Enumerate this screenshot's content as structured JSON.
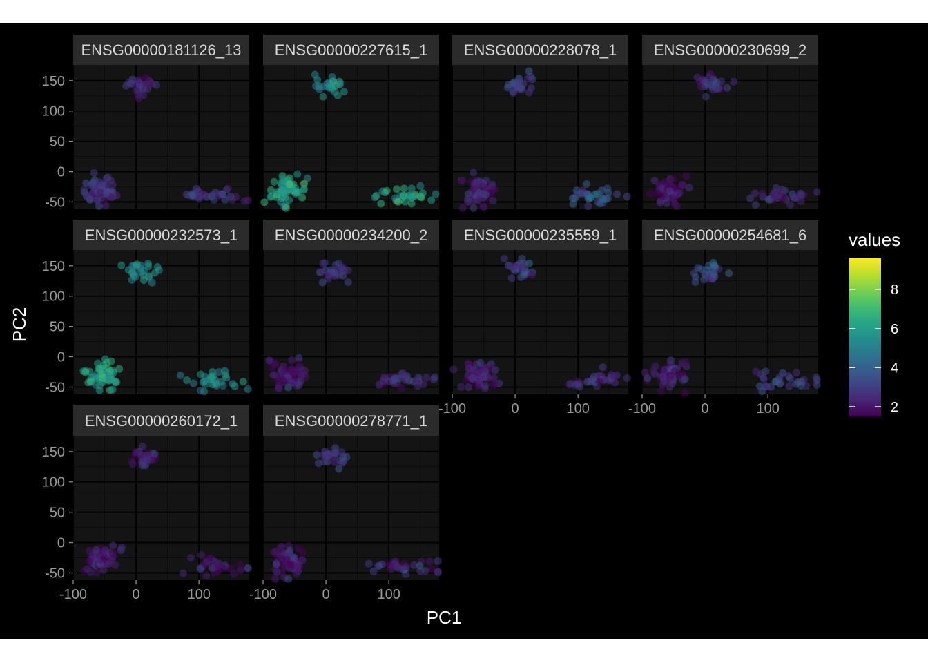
{
  "chart_data": {
    "type": "scatter",
    "xlabel": "PC1",
    "ylabel": "PC2",
    "xlim": [
      -100,
      180
    ],
    "ylim": [
      -62,
      176
    ],
    "x_ticks": [
      -100,
      0,
      100
    ],
    "y_ticks": [
      -50,
      0,
      50,
      100,
      150
    ],
    "grid": true,
    "point_alpha": 0.55,
    "legend": {
      "title": "values",
      "placement": "right",
      "range": [
        1.5,
        9.6
      ],
      "ticks": [
        2,
        4,
        6,
        8
      ]
    },
    "colors": {
      "background": "#000000",
      "panel": "#141414",
      "strip": "#2b2b2b",
      "grid": "#000000",
      "text": "#d9d9d9",
      "axis_text": "#999999",
      "title": "#ffffff"
    },
    "panels": [
      {
        "title": "ENSG00000181126_13",
        "levels": [
          2.6,
          2.7,
          2.8
        ]
      },
      {
        "title": "ENSG00000227615_1",
        "levels": [
          5.3,
          6.1,
          6.2
        ]
      },
      {
        "title": "ENSG00000228078_1",
        "levels": [
          3.1,
          2.3,
          3.6
        ]
      },
      {
        "title": "ENSG00000230699_2",
        "levels": [
          2.9,
          1.8,
          2.5
        ]
      },
      {
        "title": "ENSG00000232573_1",
        "levels": [
          5.9,
          6.1,
          5.4
        ]
      },
      {
        "title": "ENSG00000234200_2",
        "levels": [
          2.9,
          2.0,
          2.5
        ]
      },
      {
        "title": "ENSG00000235559_1",
        "levels": [
          3.2,
          2.3,
          2.6
        ]
      },
      {
        "title": "ENSG00000254681_6",
        "levels": [
          3.6,
          2.4,
          2.9
        ]
      },
      {
        "title": "ENSG00000260172_1",
        "levels": [
          2.3,
          1.9,
          1.9
        ]
      },
      {
        "title": "ENSG00000278771_1",
        "levels": [
          2.9,
          2.1,
          2.4
        ]
      }
    ],
    "clusters": [
      {
        "name": "top",
        "cx": 8,
        "cy": 142,
        "sx": 12,
        "sy": 8,
        "n": 25
      },
      {
        "name": "left",
        "cx": -58,
        "cy": -32,
        "sx": 14,
        "sy": 12,
        "n": 55
      },
      {
        "name": "right",
        "cx": 115,
        "cy": -40,
        "sx": 20,
        "sy": 7,
        "n": 30
      }
    ]
  }
}
